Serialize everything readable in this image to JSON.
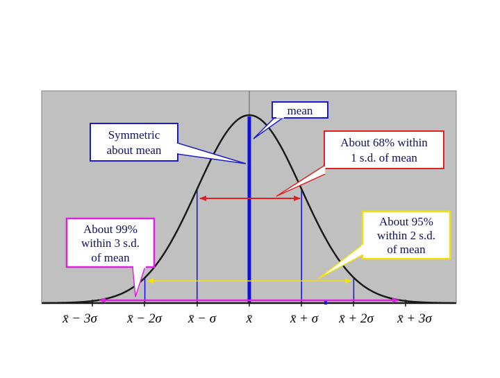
{
  "figure": {
    "callouts": {
      "mean": "mean",
      "symmetric_line1": "Symmetric",
      "symmetric_line2": "about mean",
      "p68_line1": "About 68% within",
      "p68_line2": "1 s.d. of mean",
      "p95_line1": "About 95%",
      "p95_line2": "within 2 s.d.",
      "p95_line3": "of mean",
      "p99_line1": "About 99%",
      "p99_line2": "within 3 s.d.",
      "p99_line3": "of mean"
    },
    "axis_labels": {
      "m3": "x̄ − 3σ",
      "m2": "x̄ − 2σ",
      "m1": "x̄ − σ",
      "mean": "x̄",
      "p1": "x̄ + σ",
      "p2": "x̄ + 2σ",
      "p3": "x̄ + 3σ"
    },
    "colors": {
      "plot_background": "#c0c0c0",
      "curve": "#1a1a1a",
      "sd_lines": "#1010e0",
      "mean_callout": "#1a1acc",
      "p68_arrow": "#e02020",
      "p95_arrow": "#f0e010",
      "p99_arrow": "#e020e0"
    }
  }
}
